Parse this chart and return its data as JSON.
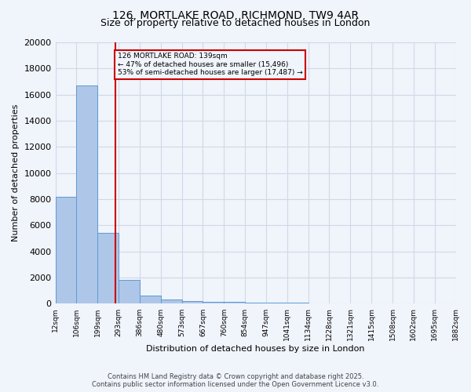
{
  "title1": "126, MORTLAKE ROAD, RICHMOND, TW9 4AR",
  "title2": "Size of property relative to detached houses in London",
  "xlabel": "Distribution of detached houses by size in London",
  "ylabel": "Number of detached properties",
  "bar_values": [
    8200,
    16700,
    5400,
    1800,
    650,
    330,
    220,
    150,
    130,
    100,
    80,
    60,
    50,
    45,
    40,
    35,
    30,
    25,
    20
  ],
  "bin_labels": [
    "12sqm",
    "106sqm",
    "199sqm",
    "293sqm",
    "386sqm",
    "480sqm",
    "573sqm",
    "667sqm",
    "760sqm",
    "854sqm",
    "947sqm",
    "1041sqm",
    "1134sqm",
    "1228sqm",
    "1321sqm",
    "1415sqm",
    "1508sqm",
    "1602sqm",
    "1695sqm",
    "1882sqm"
  ],
  "bar_color": "#aec6e8",
  "bar_edge_color": "#5b9bd5",
  "grid_color": "#d0d8e8",
  "annotation_box_color": "#cc0000",
  "annotation_text": "126 MORTLAKE ROAD: 139sqm\n← 47% of detached houses are smaller (15,496)\n53% of semi-detached houses are larger (17,487) →",
  "vline_x": 2.35,
  "vline_color": "#cc0000",
  "footnote": "Contains HM Land Registry data © Crown copyright and database right 2025.\nContains public sector information licensed under the Open Government Licence v3.0.",
  "ylim": [
    0,
    20000
  ],
  "yticks": [
    0,
    2000,
    4000,
    6000,
    8000,
    10000,
    12000,
    14000,
    16000,
    18000,
    20000
  ],
  "background_color": "#f0f4fb"
}
